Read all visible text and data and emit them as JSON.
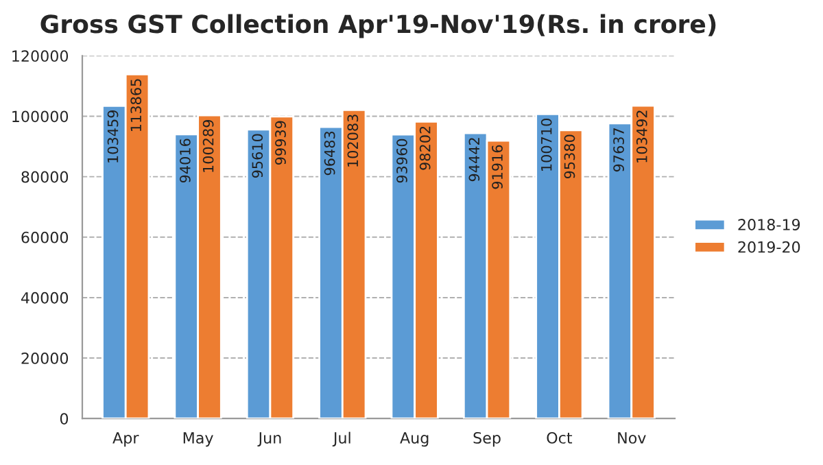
{
  "chart_data": {
    "type": "bar",
    "title": "Gross GST Collection Apr'19-Nov'19(Rs. in crore)",
    "categories": [
      "Apr",
      "May",
      "Jun",
      "Jul",
      "Aug",
      "Sep",
      "Oct",
      "Nov"
    ],
    "series": [
      {
        "name": "2018-19",
        "color": "#5b9bd5",
        "values": [
          103459,
          94016,
          95610,
          96483,
          93960,
          94442,
          100710,
          97637
        ]
      },
      {
        "name": "2019-20",
        "color": "#ed7d31",
        "values": [
          113865,
          100289,
          99939,
          102083,
          98202,
          91916,
          95380,
          103492
        ]
      }
    ],
    "ylim": [
      0,
      120000
    ],
    "yticks": [
      0,
      20000,
      40000,
      60000,
      80000,
      100000,
      120000
    ],
    "grid": "y",
    "legend": "right",
    "data_labels": true
  }
}
